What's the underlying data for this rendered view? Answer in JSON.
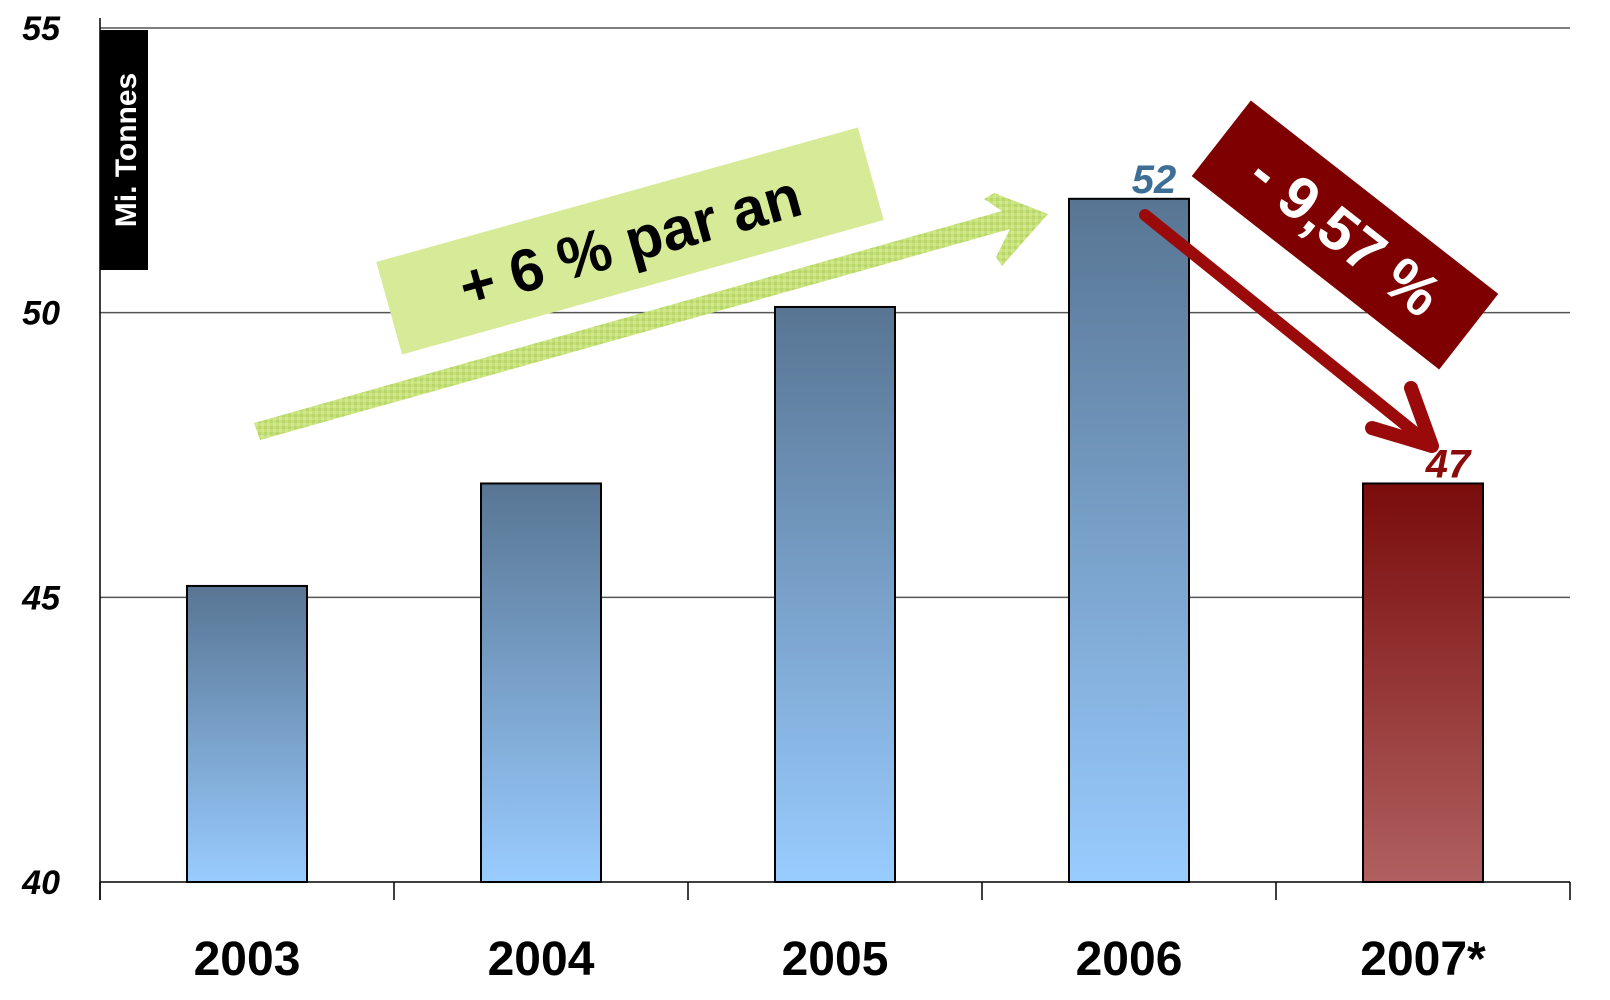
{
  "chart_data": {
    "type": "bar",
    "categories": [
      "2003",
      "2004",
      "2005",
      "2006",
      "2007*"
    ],
    "values": [
      45.2,
      47,
      50.1,
      52,
      47
    ],
    "ylabel": "Mi. Tonnes",
    "ylim": [
      40,
      55
    ],
    "yticks": [
      "40",
      "45",
      "50",
      "55"
    ],
    "grid": true,
    "data_labels": [
      {
        "index": 3,
        "text": "52",
        "color": "#3d6e96"
      },
      {
        "index": 4,
        "text": "47",
        "color": "#8b0a0a"
      }
    ],
    "annotations": {
      "growth": "+ 6 % par an",
      "decline": "- 9,57 %"
    },
    "colors": {
      "bar_top": "#587593",
      "bar_bottom": "#99ccff",
      "highlight_top": "#7a0c0c",
      "highlight_bottom": "#b06060",
      "green_box": "#d7ea98",
      "green_arrow": "#c6e07a",
      "red_box": "#7f0000",
      "red_arrow": "#9b0a0a"
    }
  }
}
